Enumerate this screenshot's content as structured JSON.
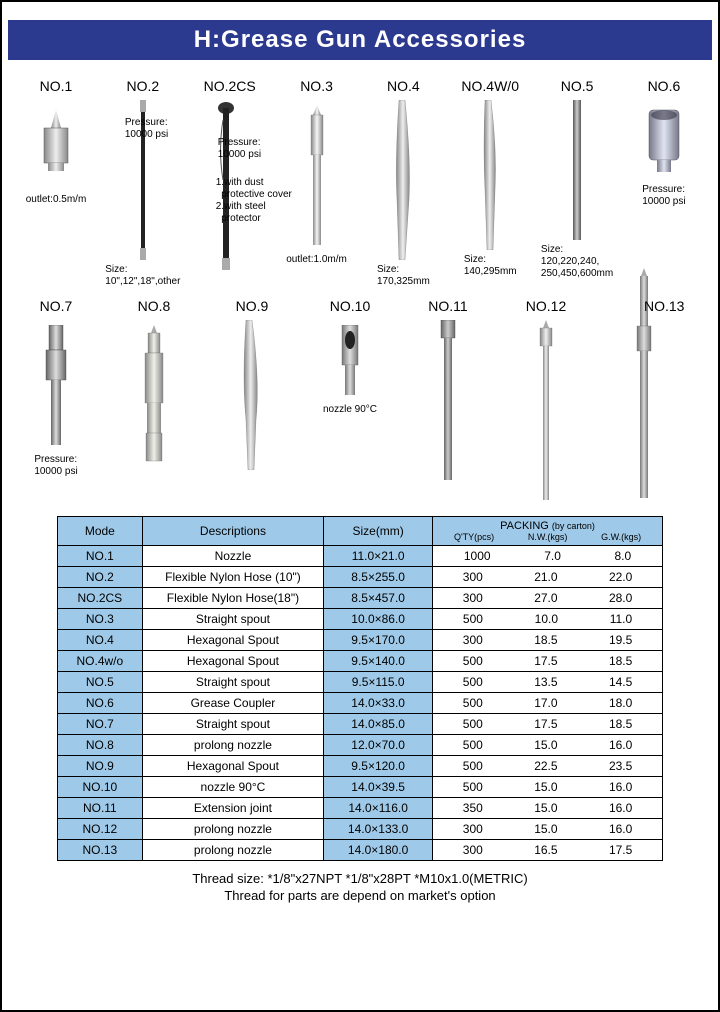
{
  "title": "H:Grease Gun Accessories",
  "colors": {
    "title_bg": "#2b3a8f",
    "title_fg": "#ffffff",
    "table_header_bg": "#9fc9e8",
    "border": "#000000",
    "page_bg": "#ffffff"
  },
  "products_row1": [
    {
      "label": "NO.1",
      "note_left": "outlet:0.5m/m"
    },
    {
      "label": "NO.2",
      "note_top": "Pressure:\n10000 psi",
      "note_bottom": "Size:\n10\",12\",18\",other"
    },
    {
      "label": "NO.2CS",
      "note_top": "Pressure:\n10000 psi",
      "note_mid": "1.with dust\n  protective cover\n2.with steel\n  protector"
    },
    {
      "label": "NO.3",
      "note_bottom": "outlet:1.0m/m"
    },
    {
      "label": "NO.4",
      "note_bottom": "Size:\n170,325mm"
    },
    {
      "label": "NO.4W/0",
      "note_bottom": "Size:\n140,295mm"
    },
    {
      "label": "NO.5",
      "note_bottom": "Size:\n120,220,240,\n250,450,600mm"
    },
    {
      "label": "NO.6",
      "note_right": "Pressure:\n10000 psi"
    }
  ],
  "products_row2": [
    {
      "label": "NO.7",
      "note_bottom": "Pressure:\n10000 psi"
    },
    {
      "label": "NO.8"
    },
    {
      "label": "NO.9"
    },
    {
      "label": "NO.10",
      "note_bottom": "nozzle 90°C"
    },
    {
      "label": "NO.11"
    },
    {
      "label": "NO.12"
    },
    {
      "label": "NO.13"
    }
  ],
  "table": {
    "headers": {
      "mode": "Mode",
      "desc": "Descriptions",
      "size": "Size(mm)",
      "packing_main": "PACKING",
      "packing_note": "(by carton)",
      "qty": "Q'TY(pcs)",
      "nw": "N.W.(kgs)",
      "gw": "G.W.(kgs)"
    },
    "rows": [
      {
        "mode": "NO.1",
        "desc": "Nozzle",
        "size": "11.0×21.0",
        "qty": "1000",
        "nw": "7.0",
        "gw": "8.0"
      },
      {
        "mode": "NO.2",
        "desc": "Flexible Nylon Hose (10\")",
        "size": "8.5×255.0",
        "qty": "300",
        "nw": "21.0",
        "gw": "22.0"
      },
      {
        "mode": "NO.2CS",
        "desc": "Flexible Nylon Hose(18\")",
        "size": "8.5×457.0",
        "qty": "300",
        "nw": "27.0",
        "gw": "28.0"
      },
      {
        "mode": "NO.3",
        "desc": "Straight spout",
        "size": "10.0×86.0",
        "qty": "500",
        "nw": "10.0",
        "gw": "11.0"
      },
      {
        "mode": "NO.4",
        "desc": "Hexagonal Spout",
        "size": "9.5×170.0",
        "qty": "300",
        "nw": "18.5",
        "gw": "19.5"
      },
      {
        "mode": "NO.4w/o",
        "desc": "Hexagonal Spout",
        "size": "9.5×140.0",
        "qty": "500",
        "nw": "17.5",
        "gw": "18.5"
      },
      {
        "mode": "NO.5",
        "desc": "Straight spout",
        "size": "9.5×115.0",
        "qty": "500",
        "nw": "13.5",
        "gw": "14.5"
      },
      {
        "mode": "NO.6",
        "desc": "Grease Coupler",
        "size": "14.0×33.0",
        "qty": "500",
        "nw": "17.0",
        "gw": "18.0"
      },
      {
        "mode": "NO.7",
        "desc": "Straight spout",
        "size": "14.0×85.0",
        "qty": "500",
        "nw": "17.5",
        "gw": "18.5"
      },
      {
        "mode": "NO.8",
        "desc": "prolong nozzle",
        "size": "12.0×70.0",
        "qty": "500",
        "nw": "15.0",
        "gw": "16.0"
      },
      {
        "mode": "NO.9",
        "desc": "Hexagonal Spout",
        "size": "9.5×120.0",
        "qty": "500",
        "nw": "22.5",
        "gw": "23.5"
      },
      {
        "mode": "NO.10",
        "desc": "nozzle 90°C",
        "size": "14.0×39.5",
        "qty": "500",
        "nw": "15.0",
        "gw": "16.0"
      },
      {
        "mode": "NO.11",
        "desc": "Extension joint",
        "size": "14.0×116.0",
        "qty": "350",
        "nw": "15.0",
        "gw": "16.0"
      },
      {
        "mode": "NO.12",
        "desc": "prolong nozzle",
        "size": "14.0×133.0",
        "qty": "300",
        "nw": "15.0",
        "gw": "16.0"
      },
      {
        "mode": "NO.13",
        "desc": "prolong nozzle",
        "size": "14.0×180.0",
        "qty": "300",
        "nw": "16.5",
        "gw": "17.5"
      }
    ]
  },
  "footer": {
    "line1": "Thread size: *1/8\"x27NPT   *1/8\"x28PT   *M10x1.0(METRIC)",
    "line2": "Thread for parts are depend on market's option"
  }
}
